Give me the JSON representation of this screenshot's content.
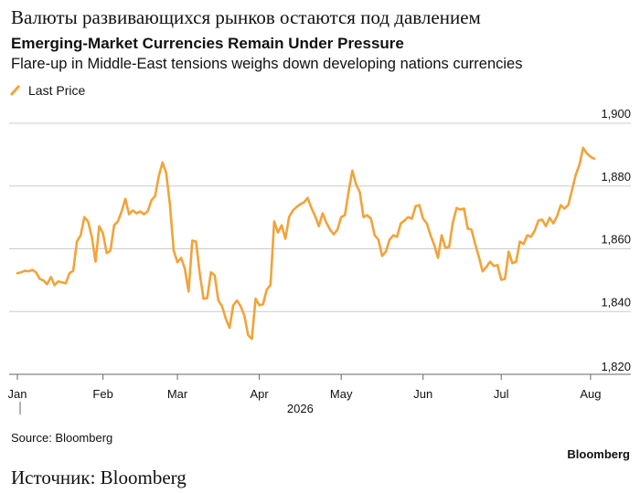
{
  "header": {
    "translated_title": "Валюты развивающихся рынков остаются под давлением",
    "caption": "Источник: Bloomberg"
  },
  "chart_data": {
    "type": "line",
    "title": "Emerging-Market Currencies Remain Under Pressure",
    "subtitle": "Flare-up in Middle-East tensions weighs down developing nations currencies",
    "source": "Source: Bloomberg",
    "brand": "Bloomberg",
    "year_label": "2026",
    "legend": "top-left",
    "grid": true,
    "categories": [
      "Jan",
      null,
      null,
      null,
      null,
      null,
      null,
      null,
      null,
      null,
      null,
      null,
      null,
      null,
      null,
      null,
      null,
      null,
      null,
      null,
      null,
      null,
      null,
      "Feb",
      null,
      null,
      null,
      null,
      null,
      null,
      null,
      null,
      null,
      null,
      null,
      null,
      null,
      null,
      null,
      null,
      null,
      null,
      null,
      "Mar",
      null,
      null,
      null,
      null,
      null,
      null,
      null,
      null,
      null,
      null,
      null,
      null,
      null,
      null,
      null,
      null,
      null,
      null,
      null,
      null,
      null,
      "Apr",
      null,
      null,
      null,
      null,
      null,
      null,
      null,
      null,
      null,
      null,
      null,
      null,
      null,
      null,
      null,
      null,
      null,
      null,
      null,
      null,
      null,
      "May",
      null,
      null,
      null,
      null,
      null,
      null,
      null,
      null,
      null,
      null,
      null,
      null,
      null,
      null,
      null,
      null,
      null,
      null,
      null,
      null,
      null,
      "Jun",
      null,
      null,
      null,
      null,
      null,
      null,
      null,
      null,
      null,
      null,
      null,
      null,
      null,
      null,
      null,
      null,
      null,
      null,
      null,
      null,
      "Jul",
      null,
      null,
      null,
      null,
      null,
      null,
      null,
      null,
      null,
      null,
      null,
      null,
      null,
      null,
      null,
      null,
      null,
      null,
      null,
      null,
      null,
      null,
      null,
      "Aug",
      null
    ],
    "series": [
      {
        "name": "Last Price",
        "color": "#f2a33a",
        "values": [
          1852.2,
          1852.5,
          1853.0,
          1852.8,
          1853.3,
          1852.5,
          1850.4,
          1849.9,
          1848.7,
          1851.0,
          1848.4,
          1849.6,
          1849.3,
          1849.0,
          1852.2,
          1853.0,
          1862.3,
          1864.3,
          1870.1,
          1868.7,
          1863.8,
          1855.9,
          1867.2,
          1864.9,
          1858.6,
          1859.4,
          1867.5,
          1868.7,
          1871.9,
          1875.9,
          1871.0,
          1872.2,
          1871.3,
          1871.9,
          1871.0,
          1871.9,
          1875.4,
          1876.8,
          1883.2,
          1887.5,
          1884.1,
          1873.9,
          1859.4,
          1855.7,
          1857.1,
          1853.6,
          1846.4,
          1862.6,
          1862.3,
          1852.2,
          1844.1,
          1844.3,
          1852.5,
          1851.6,
          1843.5,
          1841.7,
          1837.7,
          1834.8,
          1842.0,
          1843.5,
          1841.7,
          1838.6,
          1832.5,
          1831.3,
          1844.1,
          1842.0,
          1842.3,
          1847.0,
          1848.4,
          1868.7,
          1865.2,
          1867.5,
          1863.2,
          1870.1,
          1872.2,
          1873.3,
          1874.2,
          1874.8,
          1876.2,
          1873.0,
          1870.4,
          1867.2,
          1871.3,
          1868.4,
          1866.1,
          1864.6,
          1866.1,
          1870.1,
          1870.7,
          1878.3,
          1884.9,
          1880.6,
          1878.0,
          1870.1,
          1870.7,
          1869.6,
          1864.3,
          1862.9,
          1857.7,
          1859.1,
          1862.9,
          1864.3,
          1863.8,
          1868.1,
          1869.0,
          1870.1,
          1869.6,
          1873.6,
          1873.9,
          1869.6,
          1868.1,
          1864.3,
          1861.2,
          1857.1,
          1864.3,
          1860.3,
          1860.6,
          1868.4,
          1873.0,
          1872.5,
          1872.8,
          1866.4,
          1866.1,
          1861.5,
          1857.4,
          1852.8,
          1854.2,
          1855.9,
          1854.5,
          1854.8,
          1850.1,
          1850.4,
          1859.1,
          1855.4,
          1855.9,
          1862.3,
          1861.5,
          1864.3,
          1863.8,
          1865.8,
          1869.0,
          1869.3,
          1867.2,
          1869.9,
          1868.1,
          1870.4,
          1873.9,
          1872.8,
          1873.9,
          1878.6,
          1883.5,
          1886.7,
          1892.2,
          1890.4,
          1889.3,
          1888.7
        ]
      }
    ],
    "ylim": [
      1820,
      1900
    ],
    "yticks": [
      {
        "value": 1820,
        "label": "1,820"
      },
      {
        "value": 1840,
        "label": "1,840"
      },
      {
        "value": 1860,
        "label": "1,860"
      },
      {
        "value": 1880,
        "label": "1,880"
      },
      {
        "value": 1900,
        "label": "1,900"
      }
    ]
  }
}
